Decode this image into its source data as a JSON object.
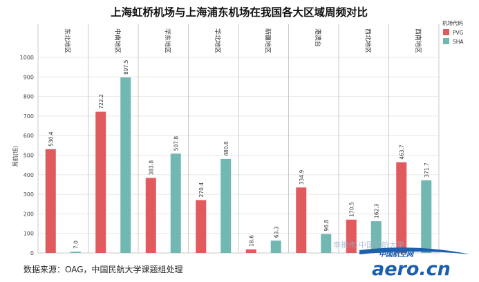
{
  "chart_data": {
    "type": "bar",
    "title": "上海虹桥机场与上海浦东机场在我国各大区域周频对比",
    "ylabel": "周航(班)",
    "ylim": [
      0,
      1000
    ],
    "yticks": [
      0,
      100,
      200,
      300,
      400,
      500,
      600,
      700,
      800,
      900,
      1000
    ],
    "grid": true,
    "legend_position": "top-right",
    "legend_title": "机场代码",
    "colors": {
      "PVG": "#e05a5e",
      "SHA": "#72b8b2"
    },
    "categories": [
      "东北地区",
      "中南地区",
      "华东地区",
      "华北地区",
      "新疆地区",
      "港澳台",
      "西北地区",
      "西南地区"
    ],
    "series": [
      {
        "name": "PVG",
        "values": [
          530.4,
          722.2,
          383.8,
          270.4,
          18.6,
          334.9,
          170.5,
          463.7
        ]
      },
      {
        "name": "SHA",
        "values": [
          7.0,
          897.5,
          507.8,
          480.8,
          63.3,
          96.8,
          162.3,
          371.7
        ]
      }
    ],
    "value_labels": {
      "PVG": [
        "530.4",
        "722.2",
        "383.8",
        "270.4",
        "18.6",
        "334.9",
        "170.5",
        "463.7"
      ],
      "SHA": [
        "7.0",
        "897.5",
        "507.8",
        "480.8",
        "63.3",
        "96.8",
        "162.3",
        "371.7"
      ]
    }
  },
  "footer": {
    "source": "数据来源：OAG，中国民航大学课题组处理"
  },
  "watermark": {
    "text": "李艳伟-中国民航大学"
  },
  "logo": {
    "top_text": "中国航空网",
    "main_text": "aero.cn"
  }
}
